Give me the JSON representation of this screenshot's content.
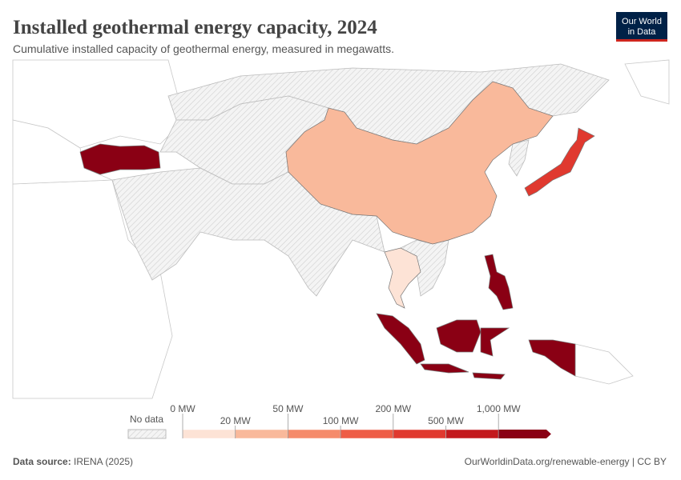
{
  "header": {
    "title": "Installed geothermal energy capacity, 2024",
    "subtitle": "Cumulative installed capacity of geothermal energy, measured in megawatts."
  },
  "logo": {
    "line1": "Our World",
    "line2": "in Data"
  },
  "legend": {
    "no_data": "No data",
    "ticks": [
      "0 MW",
      "20 MW",
      "50 MW",
      "100 MW",
      "200 MW",
      "500 MW",
      "1,000 MW"
    ],
    "colors": [
      "#fde3d6",
      "#f9b99b",
      "#f58b6b",
      "#ee5d46",
      "#e0392f",
      "#c3191d",
      "#8a0014"
    ]
  },
  "footer": {
    "source_label": "Data source:",
    "source": "IRENA (2025)",
    "url": "OurWorldinData.org/renewable-energy | CC BY"
  }
}
